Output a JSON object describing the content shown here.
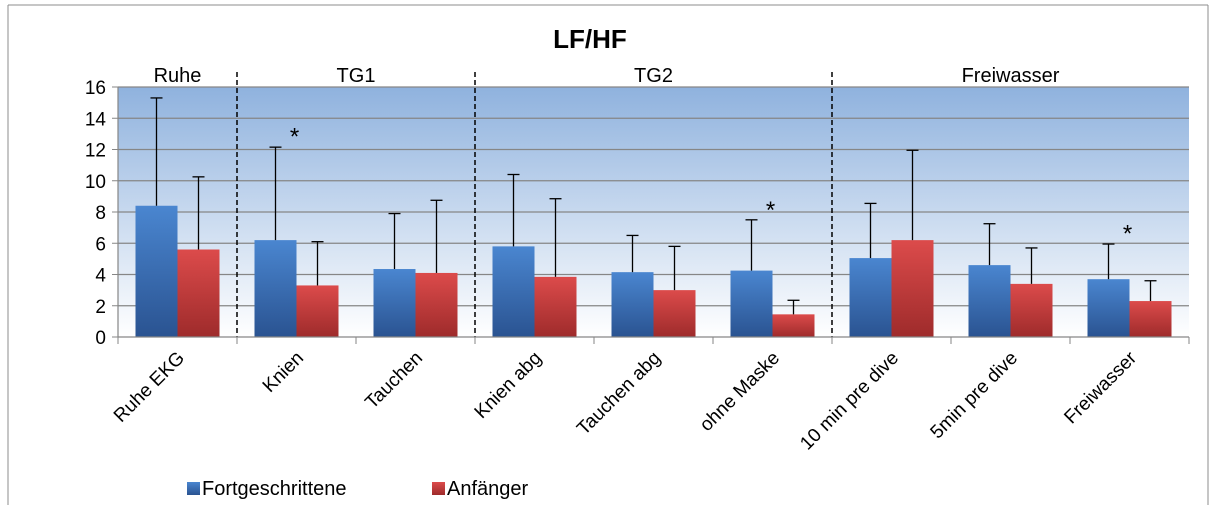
{
  "chart_data": {
    "type": "bar",
    "title": "LF/HF",
    "xlabel": "",
    "ylabel": "",
    "ylim": [
      0,
      16
    ],
    "yticks": [
      0,
      2,
      4,
      6,
      8,
      10,
      12,
      14,
      16
    ],
    "grid": true,
    "legend_position": "bottom-left",
    "categories": [
      "Ruhe EKG",
      "Knien",
      "Tauchen",
      "Knien abg",
      "Tauchen abg",
      "ohne Maske",
      "10 min pre dive",
      "5min pre dive",
      "Freiwasser"
    ],
    "series": [
      {
        "name": "Fortgeschrittene",
        "color": "#3f77bf",
        "values": [
          8.4,
          6.2,
          4.35,
          5.8,
          4.15,
          4.25,
          5.05,
          4.6,
          3.7
        ],
        "error_upper": [
          15.3,
          12.15,
          7.9,
          10.4,
          6.5,
          7.5,
          8.55,
          7.25,
          5.95
        ]
      },
      {
        "name": "Anfänger",
        "color": "#c73b3b",
        "values": [
          5.6,
          3.3,
          4.1,
          3.85,
          3.0,
          1.45,
          6.2,
          3.4,
          2.3
        ],
        "error_upper": [
          10.25,
          6.1,
          8.75,
          8.85,
          5.8,
          2.35,
          11.95,
          5.7,
          3.6
        ]
      }
    ],
    "groups": [
      {
        "label": "Ruhe",
        "start": 0,
        "end": 0
      },
      {
        "label": "TG1",
        "start": 1,
        "end": 2
      },
      {
        "label": "TG2",
        "start": 3,
        "end": 5
      },
      {
        "label": "Freiwasser",
        "start": 6,
        "end": 8
      }
    ],
    "annotations": [
      {
        "text": "*",
        "category": 1,
        "y": 12.2
      },
      {
        "text": "*",
        "category": 5,
        "y": 7.5
      },
      {
        "text": "*",
        "category": 8,
        "y": 6.0
      }
    ]
  }
}
